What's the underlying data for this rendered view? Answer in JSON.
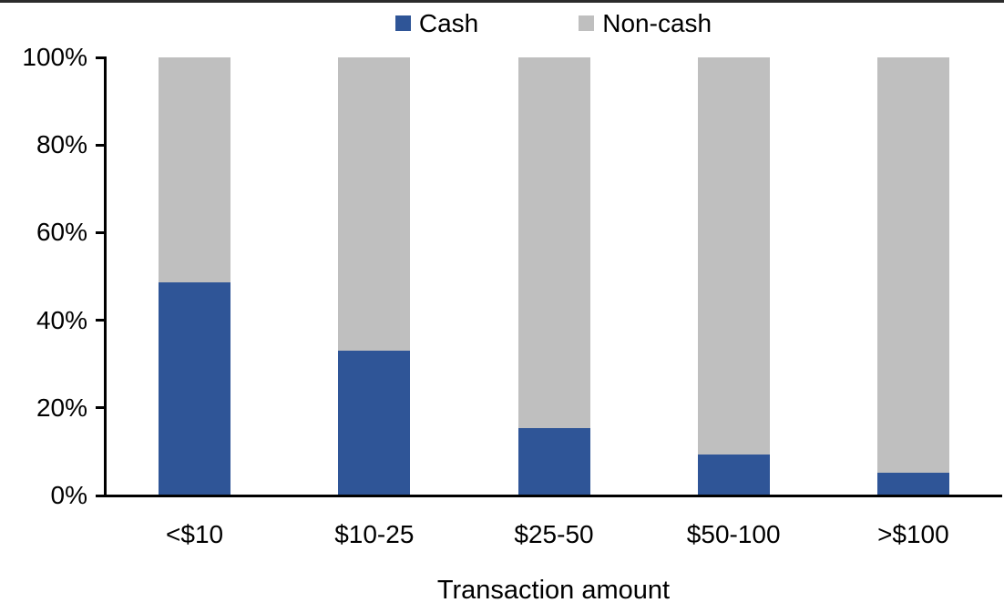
{
  "chart_data": {
    "type": "bar",
    "stacked": true,
    "orientation": "vertical",
    "categories": [
      "<$10",
      "$10-25",
      "$25-50",
      "$50-100",
      ">$100"
    ],
    "series": [
      {
        "name": "Cash",
        "color": "#2F5597",
        "values": [
          48.6,
          33.1,
          15.4,
          9.4,
          5.2
        ]
      },
      {
        "name": "Non-cash",
        "color": "#BFBFBF",
        "values": [
          51.4,
          66.9,
          84.6,
          90.6,
          94.8
        ]
      }
    ],
    "title": "",
    "xlabel": "Transaction amount",
    "ylabel": "",
    "ylim": [
      0,
      100
    ],
    "ytick_labels": [
      "0%",
      "20%",
      "40%",
      "60%",
      "80%",
      "100%"
    ],
    "ytick_values": [
      0,
      20,
      40,
      60,
      80,
      100
    ],
    "legend_position": "top-center",
    "grid": false,
    "axis_color": "#000000",
    "text_color": "#000000",
    "background_color": "#FFFFFF"
  }
}
